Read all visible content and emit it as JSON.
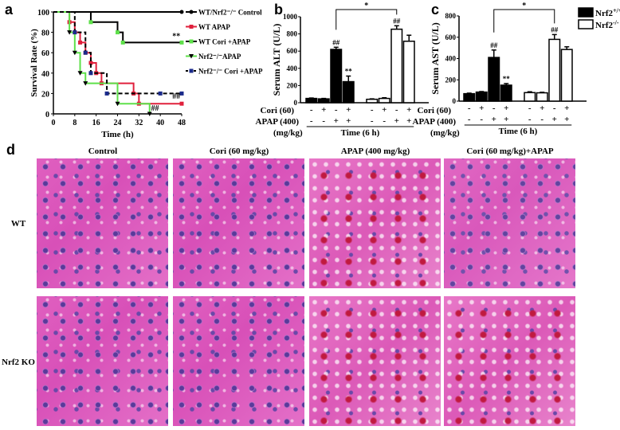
{
  "panels": {
    "a": "a",
    "b": "b",
    "c": "c",
    "d": "d"
  },
  "chart_data": [
    {
      "type": "line",
      "panel": "a",
      "xlabel": "Time (h)",
      "ylabel": "Survival Rate (%)",
      "xlim": [
        0,
        48
      ],
      "ylim": [
        0,
        100
      ],
      "xticks": [
        0,
        8,
        16,
        24,
        32,
        40,
        48
      ],
      "yticks": [
        0,
        20,
        40,
        60,
        80,
        100
      ],
      "series": [
        {
          "name": "WT/Nrf2⁻/⁻ Control",
          "color": "#000000",
          "marker": "circle",
          "dash": false,
          "x": [
            0,
            48
          ],
          "y": [
            100,
            100
          ]
        },
        {
          "name": "WT APAP",
          "color": "#e0203c",
          "marker": "square",
          "dash": false,
          "x": [
            0,
            6,
            8,
            10,
            12,
            14,
            16,
            18,
            30,
            32,
            48
          ],
          "y": [
            100,
            90,
            80,
            70,
            60,
            50,
            40,
            30,
            20,
            10,
            10
          ]
        },
        {
          "name": "WT Cori +APAP",
          "color": "#000000",
          "marker_color": "#5ee04a",
          "marker": "square",
          "dash": false,
          "x": [
            0,
            14,
            24,
            26,
            48
          ],
          "y": [
            100,
            90,
            80,
            70,
            70
          ]
        },
        {
          "name": "Nrf2⁻/⁻APAP",
          "color": "#5ee04a",
          "marker_color": "#000000",
          "marker": "triangle",
          "dash": false,
          "x": [
            0,
            6,
            8,
            10,
            12,
            24,
            36
          ],
          "y": [
            100,
            80,
            60,
            40,
            30,
            10,
            0
          ]
        },
        {
          "name": "Nrf2⁻/⁻ Cori +APAP",
          "color": "#000000",
          "marker_color": "#1a2a8a",
          "marker": "square",
          "dash": true,
          "x": [
            0,
            8,
            12,
            14,
            20,
            40,
            48
          ],
          "y": [
            100,
            80,
            60,
            40,
            20,
            20,
            20
          ]
        }
      ],
      "annotations": [
        {
          "text": "**",
          "x": 46,
          "y": 74
        },
        {
          "text": "##",
          "x": 46,
          "y": 15
        },
        {
          "text": "##",
          "x": 38,
          "y": 3
        }
      ]
    },
    {
      "type": "bar",
      "panel": "b",
      "ylabel": "Serum ALT (U/L)",
      "ylim": [
        0,
        1000
      ],
      "yticks": [
        0,
        200,
        400,
        600,
        800,
        1000
      ],
      "series": [
        {
          "name": "Nrf2+/+",
          "values": [
            50,
            45,
            620,
            245
          ],
          "errors": [
            5,
            5,
            25,
            65
          ],
          "labels": [
            "",
            "",
            "##",
            "**"
          ]
        },
        {
          "name": "Nrf2-/-",
          "values": [
            40,
            50,
            855,
            715
          ],
          "errors": [
            5,
            8,
            40,
            70
          ],
          "labels": [
            "",
            "",
            "##",
            ""
          ]
        }
      ],
      "significance": "*"
    },
    {
      "type": "bar",
      "panel": "c",
      "ylabel": "Serum AST (U/L)",
      "ylim": [
        0,
        800
      ],
      "yticks": [
        0,
        200,
        400,
        600,
        800
      ],
      "series": [
        {
          "name": "Nrf2+/+",
          "values": [
            70,
            85,
            410,
            150
          ],
          "errors": [
            5,
            5,
            70,
            15
          ],
          "labels": [
            "",
            "",
            "##",
            "**"
          ]
        },
        {
          "name": "Nrf2-/-",
          "values": [
            80,
            78,
            580,
            485
          ],
          "errors": [
            8,
            5,
            45,
            25
          ],
          "labels": [
            "",
            "",
            "##",
            ""
          ]
        }
      ],
      "significance": "*"
    }
  ],
  "bar_table": {
    "cori_label": "Cori (60)",
    "apap_label": "APAP (400)",
    "unit_label": "(mg/kg)",
    "time_label": "Time (6 h)",
    "cori": [
      "-",
      "+",
      "-",
      "+",
      "-",
      "+",
      "-",
      "+"
    ],
    "apap": [
      "-",
      "-",
      "+",
      "+",
      "-",
      "-",
      "+",
      "+"
    ]
  },
  "legend_bc": [
    {
      "label": "Nrf2",
      "sup": "+/+",
      "fill": "#000000"
    },
    {
      "label": "Nrf2",
      "sup": "-/-",
      "fill": "#ffffff"
    }
  ],
  "histology": {
    "columns": [
      "Control",
      "Cori (60 mg/kg)",
      "APAP (400 mg/kg)",
      "Cori (60 mg/kg)+APAP"
    ],
    "rows": [
      "WT",
      "Nrf2 KO"
    ]
  }
}
